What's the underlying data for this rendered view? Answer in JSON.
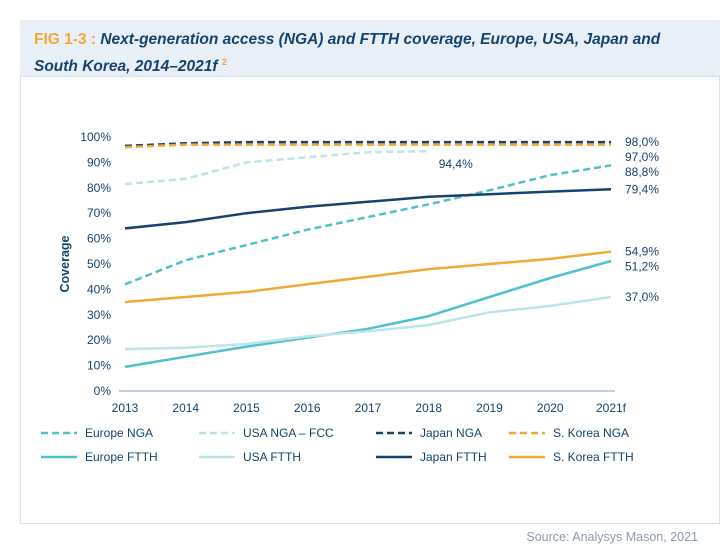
{
  "figure": {
    "fig_number": "FIG 1-3 :",
    "title": "Next-generation access (NGA) and FTTH coverage, Europe, USA, Japan and South Korea, 2014–2021f",
    "footnote_marker": "2",
    "source": "Source: Analysys Mason, 2021"
  },
  "chart_data": {
    "type": "line",
    "title": "Next-generation access (NGA) and FTTH coverage, Europe, USA, Japan and South Korea, 2014–2021f",
    "xlabel": "",
    "ylabel": "Coverage",
    "categories": [
      "2013",
      "2014",
      "2015",
      "2016",
      "2017",
      "2018",
      "2019",
      "2020",
      "2021f"
    ],
    "yticks": [
      "0%",
      "10%",
      "20%",
      "30%",
      "40%",
      "50%",
      "60%",
      "70%",
      "80%",
      "90%",
      "100%"
    ],
    "ylim": [
      0,
      100
    ],
    "grid": false,
    "legend_position": "bottom",
    "series": [
      {
        "name": "Europe NGA",
        "dash": true,
        "color": "#4fc0cc",
        "values": [
          42,
          51.5,
          57.5,
          63.5,
          68.5,
          73.5,
          79,
          85,
          88.8
        ],
        "end_label": "88,8%"
      },
      {
        "name": "USA NGA – FCC",
        "dash": true,
        "color": "#bde4ea",
        "values": [
          81.5,
          83.5,
          90,
          92,
          94,
          94.4,
          null,
          null,
          null
        ],
        "point_label": {
          "index": 5,
          "text": "94,4%"
        }
      },
      {
        "name": "Japan NGA",
        "dash": true,
        "color": "#15436e",
        "values": [
          96.5,
          97.5,
          98,
          98,
          98,
          98,
          98,
          98,
          98
        ],
        "end_label": "98,0%"
      },
      {
        "name": "S. Korea NGA",
        "dash": true,
        "color": "#f0a934",
        "values": [
          96,
          97,
          97,
          97,
          97,
          97,
          97,
          97,
          97
        ],
        "end_label": "97,0%"
      },
      {
        "name": "Europe FTTH",
        "dash": false,
        "color": "#4fc0cc",
        "values": [
          9.5,
          13.5,
          17.5,
          21,
          24.5,
          29.5,
          37,
          44.5,
          51.2
        ],
        "end_label": "51,2%"
      },
      {
        "name": "USA FTTH",
        "dash": false,
        "color": "#bde4ea",
        "values": [
          16.5,
          17,
          18.5,
          21.5,
          23.5,
          26,
          31,
          33.5,
          37
        ],
        "end_label": "37,0%"
      },
      {
        "name": "Japan FTTH",
        "dash": false,
        "color": "#15436e",
        "values": [
          64,
          66.5,
          70,
          72.5,
          74.5,
          76.5,
          77.5,
          78.5,
          79.4
        ],
        "end_label": "79,4%"
      },
      {
        "name": "S. Korea FTTH",
        "dash": false,
        "color": "#f0a934",
        "values": [
          35,
          37,
          39,
          42,
          45,
          48,
          50,
          52,
          54.9
        ],
        "end_label": "54,9%"
      }
    ]
  }
}
